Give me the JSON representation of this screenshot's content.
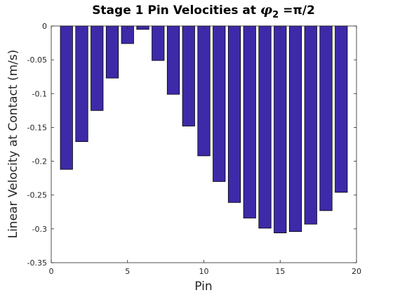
{
  "chart_data": {
    "type": "bar",
    "title": {
      "prefix": "Stage 1 Pin Velocities at ",
      "symbol": "φ",
      "subscript": "2",
      "suffix": " =π/2"
    },
    "xlabel": "Pin",
    "ylabel": "Linear Velocity at Contact (m/s)",
    "xlim": [
      0,
      20
    ],
    "ylim": [
      -0.35,
      0
    ],
    "xticks": [
      0,
      5,
      10,
      15,
      20
    ],
    "yticks": [
      0,
      -0.05,
      -0.1,
      -0.15,
      -0.2,
      -0.25,
      -0.3,
      -0.35
    ],
    "ytick_labels": [
      "0",
      "-0.05",
      "-0.1",
      "-0.15",
      "-0.2",
      "-0.25",
      "-0.3",
      "-0.35"
    ],
    "grid": false,
    "bar_color": "#3d2aa8",
    "bar_edge_color": "#000000",
    "categories": [
      1,
      2,
      3,
      4,
      5,
      6,
      7,
      8,
      9,
      10,
      11,
      12,
      13,
      14,
      15,
      16,
      17,
      18,
      19
    ],
    "values": [
      -0.212,
      -0.171,
      -0.125,
      -0.077,
      -0.026,
      -0.005,
      -0.051,
      -0.101,
      -0.148,
      -0.192,
      -0.23,
      -0.261,
      -0.284,
      -0.299,
      -0.306,
      -0.304,
      -0.293,
      -0.273,
      -0.246
    ]
  }
}
